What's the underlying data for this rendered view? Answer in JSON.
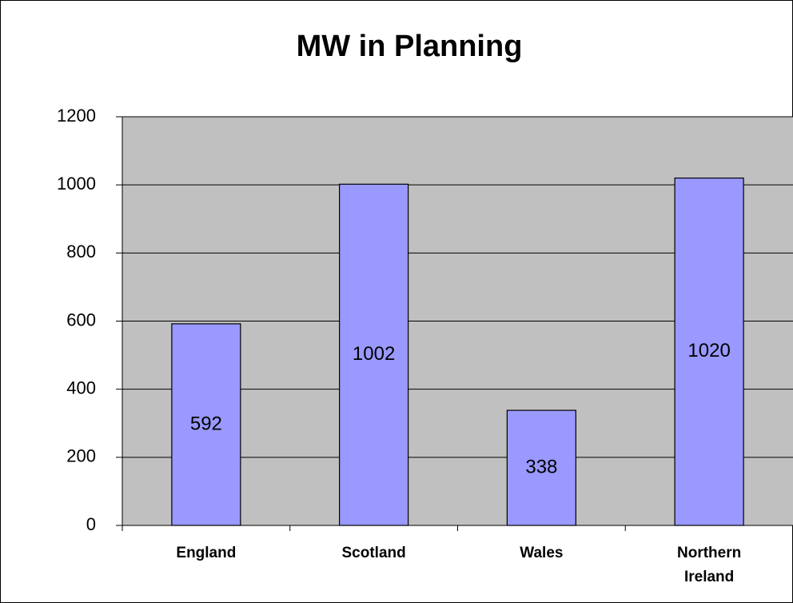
{
  "chart_data": {
    "type": "bar",
    "title": "MW in Planning",
    "categories": [
      "England",
      "Scotland",
      "Wales",
      "Northern Ireland"
    ],
    "values": [
      592,
      1002,
      338,
      1020
    ],
    "color": "#9999ff",
    "ylim": [
      0,
      1200
    ],
    "yticks": [
      0,
      200,
      400,
      600,
      800,
      1000,
      1200
    ],
    "grid": true
  }
}
